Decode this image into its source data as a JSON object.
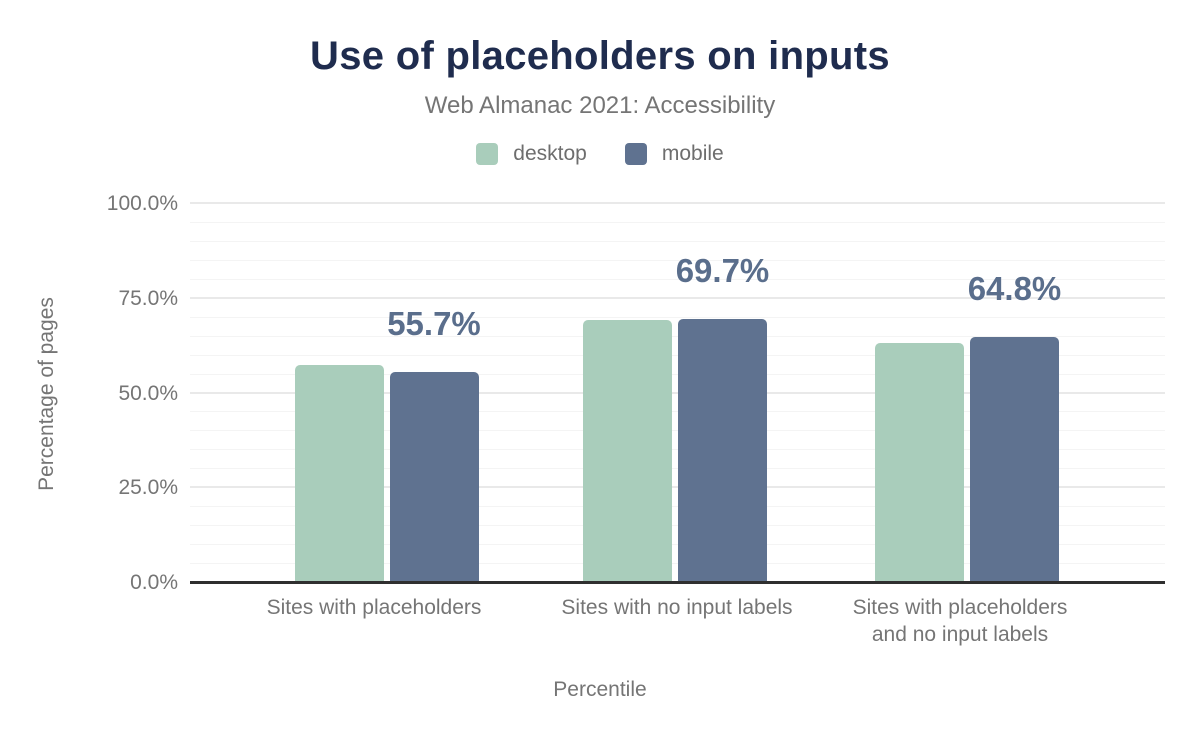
{
  "header": {
    "title": "Use of placeholders on inputs",
    "subtitle": "Web Almanac 2021: Accessibility"
  },
  "legend": [
    {
      "label": "desktop",
      "color": "#a9cdbb",
      "swatch_icon": "desktop-series-swatch"
    },
    {
      "label": "mobile",
      "color": "#5f7290",
      "swatch_icon": "mobile-series-swatch"
    }
  ],
  "chart_data": {
    "type": "bar",
    "title": "Use of placeholders on inputs",
    "subtitle": "Web Almanac 2021: Accessibility",
    "categories": [
      "Sites with placeholders",
      "Sites with no input labels",
      "Sites with placeholders and no input labels"
    ],
    "categories_lines": [
      [
        "Sites with placeholders"
      ],
      [
        "Sites with no input labels"
      ],
      [
        "Sites with placeholders",
        "and no input labels"
      ]
    ],
    "series": [
      {
        "name": "desktop",
        "color": "#a9cdbb",
        "values": [
          57.4,
          69.3,
          63.4
        ]
      },
      {
        "name": "mobile",
        "color": "#5f7290",
        "values": [
          55.7,
          69.7,
          64.8
        ]
      }
    ],
    "bar_labels": {
      "series": "mobile",
      "values": [
        "55.7%",
        "69.7%",
        "64.8%"
      ]
    },
    "xlabel": "Percentile",
    "ylabel": "Percentage of pages",
    "ylim": [
      0,
      100
    ],
    "yticks": [
      {
        "value": 0,
        "label": "0.0%"
      },
      {
        "value": 25,
        "label": "25.0%"
      },
      {
        "value": 50,
        "label": "50.0%"
      },
      {
        "value": 75,
        "label": "75.0%"
      },
      {
        "value": 100,
        "label": "100.0%"
      }
    ],
    "grid": {
      "minor_step": 5,
      "major_step": 25,
      "legend_position": "top"
    }
  },
  "colors": {
    "title_text": "#1f2c4e",
    "axis_text": "#757575",
    "legend_text": "#6e6e6e",
    "data_label_text": "#5a6e8c",
    "axis_line": "#2f2f2f",
    "gridline_major": "#e9e9e9",
    "gridline_minor": "#f4f4f4",
    "background": "#ffffff"
  }
}
